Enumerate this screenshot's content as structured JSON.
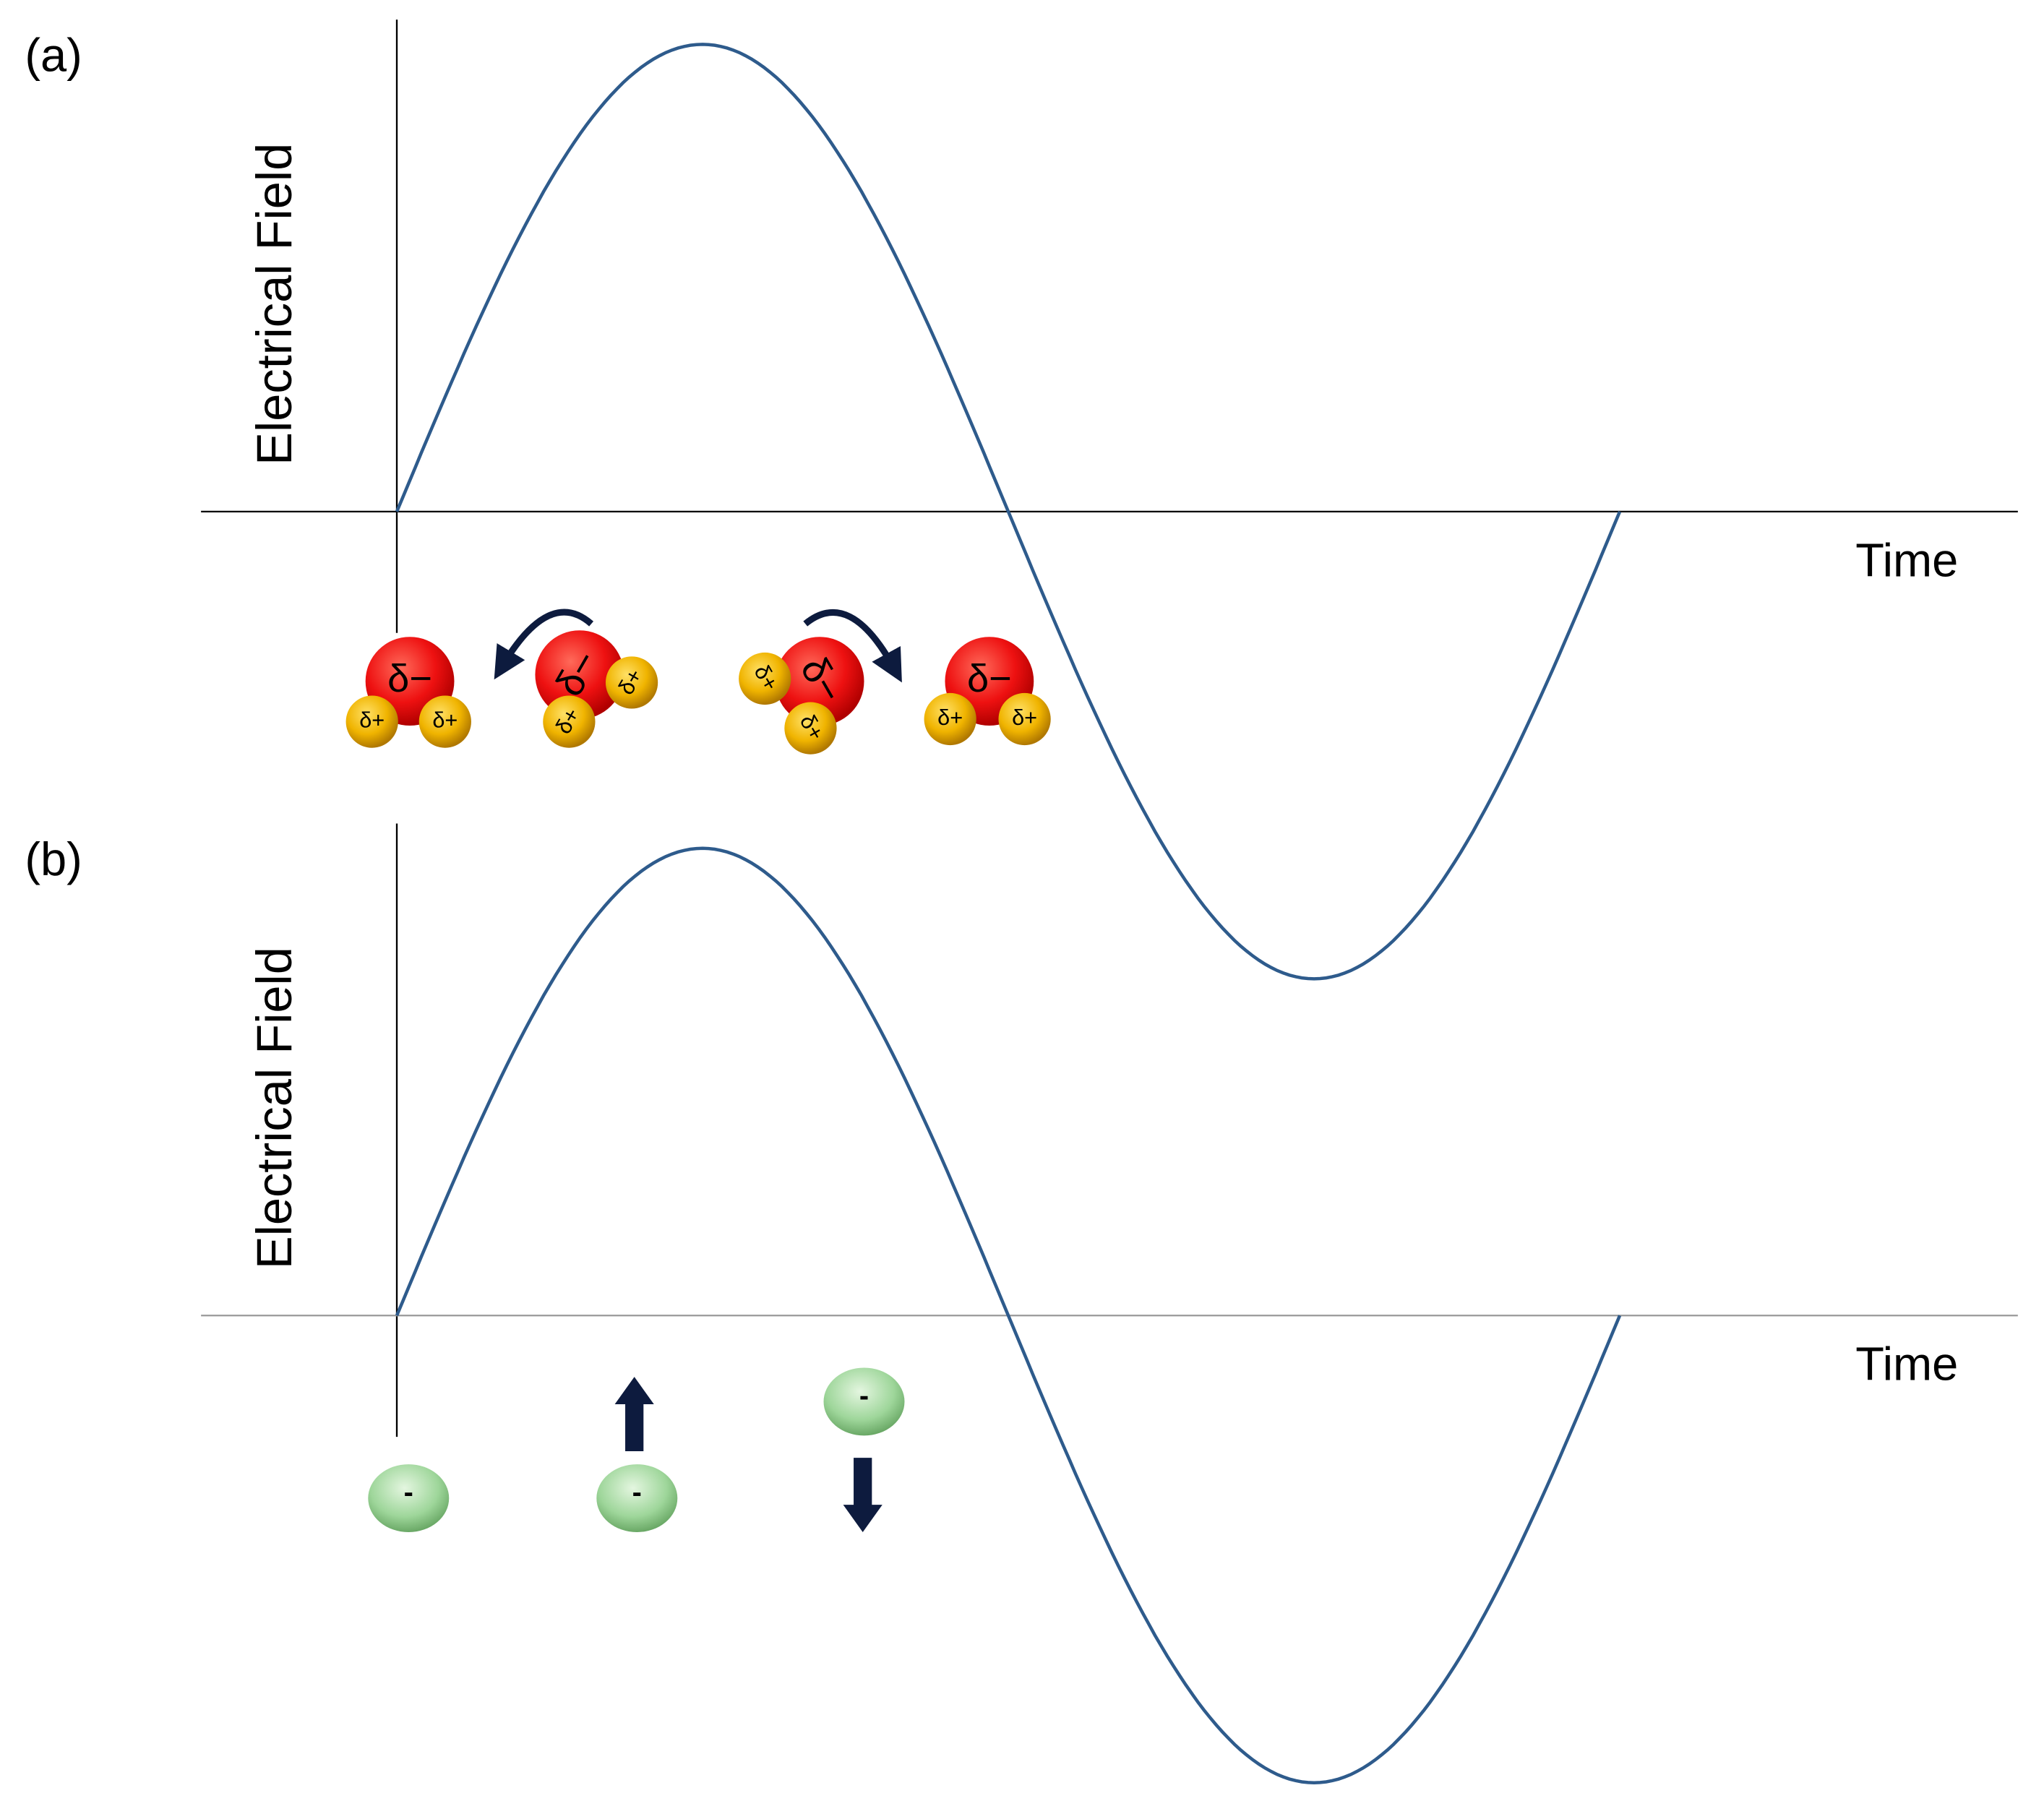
{
  "panels": [
    {
      "label": "(a)",
      "y_axis_label": "Electrical Field",
      "x_axis_label": "Time",
      "molecules": [
        {
          "charge": "δ−",
          "hydrogens": [
            "δ+",
            "δ+"
          ]
        },
        {
          "charge": "δ−",
          "hydrogens": [
            "δ+",
            "δ+"
          ]
        },
        {
          "charge": "δ−",
          "hydrogens": [
            "δ+",
            "δ+"
          ]
        },
        {
          "charge": "δ−",
          "hydrogens": [
            "δ+",
            "δ+"
          ]
        }
      ]
    },
    {
      "label": "(b)",
      "y_axis_label": "Electrical Field",
      "x_axis_label": "Time",
      "ions": [
        "-",
        "-",
        "-"
      ]
    }
  ]
}
